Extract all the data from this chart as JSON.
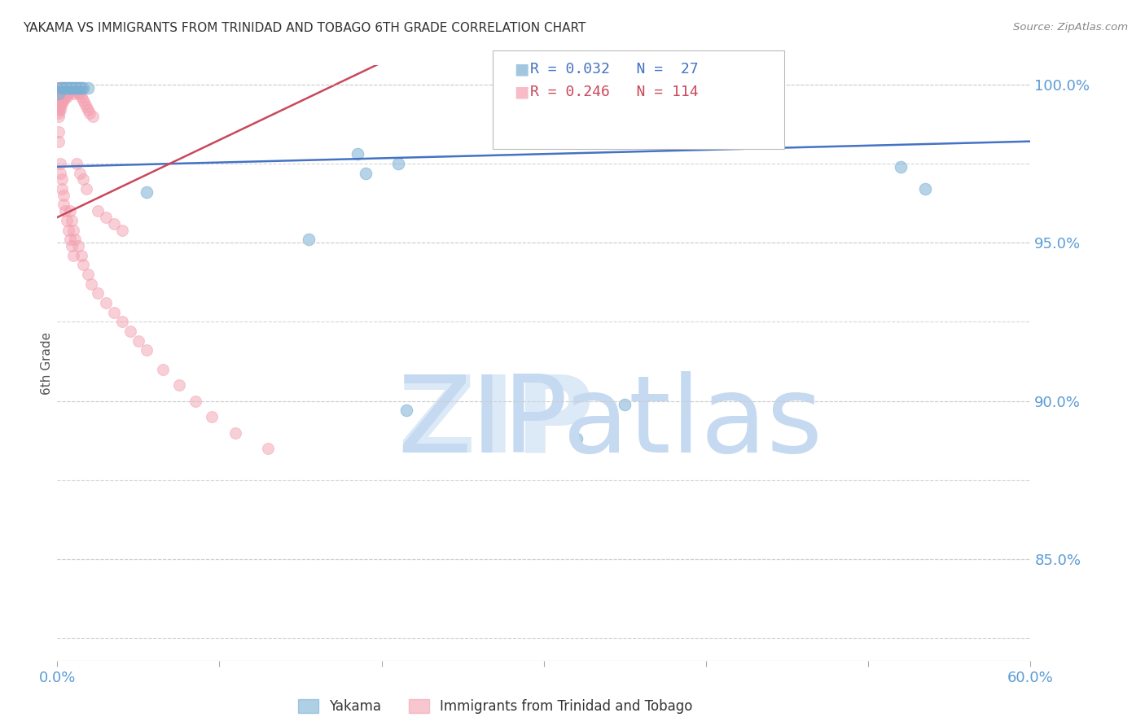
{
  "title": "YAKAMA VS IMMIGRANTS FROM TRINIDAD AND TOBAGO 6TH GRADE CORRELATION CHART",
  "source": "Source: ZipAtlas.com",
  "ylabel": "6th Grade",
  "ylabel_right_ticks": [
    85.0,
    90.0,
    95.0,
    100.0
  ],
  "xmin": 0.0,
  "xmax": 0.6,
  "ymin": 0.818,
  "ymax": 1.006,
  "blue_label": "Yakama",
  "pink_label": "Immigrants from Trinidad and Tobago",
  "blue_R": 0.032,
  "blue_N": 27,
  "pink_R": 0.246,
  "pink_N": 114,
  "blue_color": "#7BAFD4",
  "pink_color": "#F4A0B0",
  "blue_line_color": "#4472C4",
  "pink_line_color": "#C9485B",
  "background_color": "#FFFFFF",
  "grid_color": "#CCCCCC",
  "axis_label_color": "#5B9BD5",
  "title_color": "#333333",
  "watermark_zip_color": "#DCE9F7",
  "watermark_atlas_color": "#C5D9F0",
  "blue_scatter_x": [
    0.001,
    0.002,
    0.003,
    0.004,
    0.005,
    0.006,
    0.007,
    0.008,
    0.009,
    0.01,
    0.011,
    0.012,
    0.013,
    0.014,
    0.015,
    0.016,
    0.019,
    0.055,
    0.185,
    0.19,
    0.21,
    0.215,
    0.35,
    0.52,
    0.535,
    0.155,
    0.32
  ],
  "blue_scatter_y": [
    0.997,
    0.999,
    0.999,
    0.999,
    0.999,
    0.999,
    0.999,
    0.999,
    0.999,
    0.999,
    0.999,
    0.999,
    0.999,
    0.999,
    0.999,
    0.999,
    0.999,
    0.966,
    0.978,
    0.972,
    0.975,
    0.897,
    0.899,
    0.974,
    0.967,
    0.951,
    0.888
  ],
  "pink_scatter_x": [
    0.001,
    0.001,
    0.001,
    0.001,
    0.001,
    0.001,
    0.001,
    0.001,
    0.001,
    0.001,
    0.001,
    0.001,
    0.001,
    0.001,
    0.001,
    0.001,
    0.001,
    0.001,
    0.001,
    0.001,
    0.002,
    0.002,
    0.002,
    0.002,
    0.002,
    0.002,
    0.002,
    0.002,
    0.002,
    0.002,
    0.003,
    0.003,
    0.003,
    0.003,
    0.003,
    0.003,
    0.003,
    0.004,
    0.004,
    0.004,
    0.004,
    0.004,
    0.005,
    0.005,
    0.005,
    0.005,
    0.006,
    0.006,
    0.006,
    0.006,
    0.007,
    0.007,
    0.007,
    0.008,
    0.008,
    0.009,
    0.009,
    0.01,
    0.01,
    0.011,
    0.012,
    0.013,
    0.014,
    0.015,
    0.016,
    0.017,
    0.018,
    0.019,
    0.02,
    0.022,
    0.001,
    0.001,
    0.002,
    0.002,
    0.003,
    0.003,
    0.004,
    0.004,
    0.005,
    0.006,
    0.007,
    0.008,
    0.009,
    0.01,
    0.012,
    0.014,
    0.016,
    0.018,
    0.008,
    0.009,
    0.01,
    0.011,
    0.013,
    0.015,
    0.016,
    0.019,
    0.021,
    0.025,
    0.03,
    0.035,
    0.04,
    0.045,
    0.05,
    0.055,
    0.065,
    0.075,
    0.085,
    0.095,
    0.11,
    0.13,
    0.025,
    0.03,
    0.035,
    0.04
  ],
  "pink_scatter_y": [
    0.999,
    0.999,
    0.999,
    0.999,
    0.999,
    0.999,
    0.999,
    0.998,
    0.998,
    0.998,
    0.997,
    0.997,
    0.996,
    0.996,
    0.995,
    0.994,
    0.993,
    0.992,
    0.991,
    0.99,
    0.999,
    0.999,
    0.998,
    0.998,
    0.997,
    0.996,
    0.995,
    0.994,
    0.993,
    0.992,
    0.999,
    0.999,
    0.998,
    0.997,
    0.996,
    0.995,
    0.994,
    0.999,
    0.998,
    0.997,
    0.996,
    0.995,
    0.999,
    0.998,
    0.997,
    0.996,
    0.999,
    0.998,
    0.997,
    0.996,
    0.999,
    0.998,
    0.997,
    0.999,
    0.998,
    0.999,
    0.998,
    0.999,
    0.997,
    0.999,
    0.998,
    0.997,
    0.997,
    0.996,
    0.995,
    0.994,
    0.993,
    0.992,
    0.991,
    0.99,
    0.985,
    0.982,
    0.975,
    0.972,
    0.97,
    0.967,
    0.965,
    0.962,
    0.96,
    0.957,
    0.954,
    0.951,
    0.949,
    0.946,
    0.975,
    0.972,
    0.97,
    0.967,
    0.96,
    0.957,
    0.954,
    0.951,
    0.949,
    0.946,
    0.943,
    0.94,
    0.937,
    0.934,
    0.931,
    0.928,
    0.925,
    0.922,
    0.919,
    0.916,
    0.91,
    0.905,
    0.9,
    0.895,
    0.89,
    0.885,
    0.96,
    0.958,
    0.956,
    0.954
  ]
}
